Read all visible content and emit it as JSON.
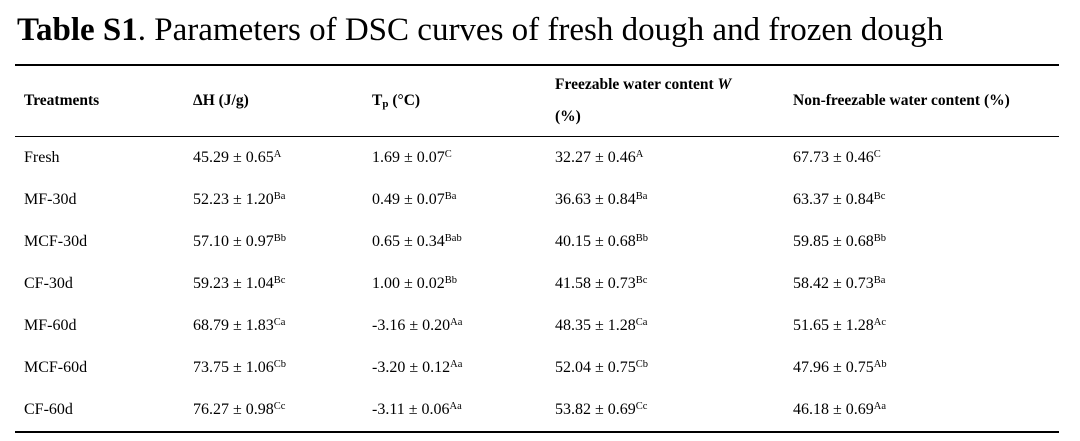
{
  "caption": {
    "label": "Table S1",
    "text": ". Parameters of DSC curves of fresh dough and frozen dough"
  },
  "headers": {
    "treatments": "Treatments",
    "dh": "ΔH (J/g)",
    "tp_main": "T",
    "tp_sub": "p",
    "tp_unit": " (°C)",
    "fw_line1": "Freezable water content ",
    "fw_var": "W",
    "fw_line2": "(%)",
    "nfw": "Non-freezable water content (%)"
  },
  "rows": [
    {
      "treatment": "Fresh",
      "dh": "45.29 ± 0.65",
      "dh_sup": "A",
      "tp": "1.69 ± 0.07",
      "tp_sup": "C",
      "fw": "32.27 ± 0.46",
      "fw_sup": "A",
      "nfw": "67.73 ± 0.46",
      "nfw_sup": "C"
    },
    {
      "treatment": "MF-30d",
      "dh": "52.23 ± 1.20",
      "dh_sup": "Ba",
      "tp": "0.49 ± 0.07",
      "tp_sup": "Ba",
      "fw": "36.63 ± 0.84",
      "fw_sup": "Ba",
      "nfw": "63.37 ± 0.84",
      "nfw_sup": "Bc"
    },
    {
      "treatment": "MCF-30d",
      "dh": "57.10 ± 0.97",
      "dh_sup": "Bb",
      "tp": "0.65 ± 0.34",
      "tp_sup": "Bab",
      "fw": "40.15 ± 0.68",
      "fw_sup": "Bb",
      "nfw": "59.85 ± 0.68",
      "nfw_sup": "Bb"
    },
    {
      "treatment": "CF-30d",
      "dh": "59.23 ± 1.04",
      "dh_sup": "Bc",
      "tp": "1.00 ± 0.02",
      "tp_sup": "Bb",
      "fw": "41.58 ± 0.73",
      "fw_sup": "Bc",
      "nfw": "58.42 ± 0.73",
      "nfw_sup": "Ba"
    },
    {
      "treatment": "MF-60d",
      "dh": "68.79 ± 1.83",
      "dh_sup": "Ca",
      "tp": "-3.16 ± 0.20",
      "tp_sup": "Aa",
      "fw": "48.35 ± 1.28",
      "fw_sup": "Ca",
      "nfw": "51.65 ± 1.28",
      "nfw_sup": "Ac"
    },
    {
      "treatment": "MCF-60d",
      "dh": "73.75 ± 1.06",
      "dh_sup": "Cb",
      "tp": "-3.20 ± 0.12",
      "tp_sup": "Aa",
      "fw": "52.04 ± 0.75",
      "fw_sup": "Cb",
      "nfw": "47.96 ± 0.75",
      "nfw_sup": "Ab"
    },
    {
      "treatment": "CF-60d",
      "dh": "76.27 ± 0.98",
      "dh_sup": "Cc",
      "tp": "-3.11 ± 0.06",
      "tp_sup": "Aa",
      "fw": "53.82 ± 0.69",
      "fw_sup": "Cc",
      "nfw": "46.18 ± 0.69",
      "nfw_sup": "Aa"
    }
  ]
}
